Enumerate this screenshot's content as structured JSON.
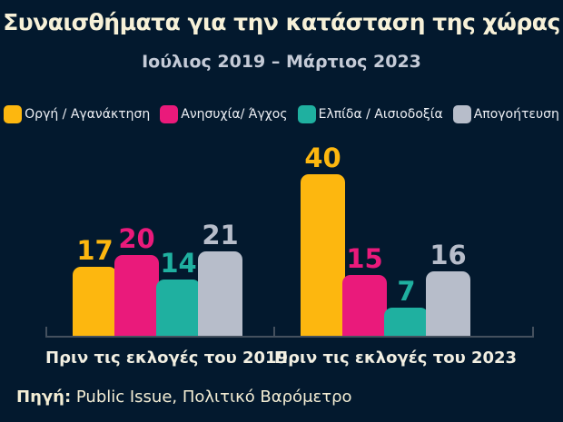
{
  "header": {
    "title": "Συναισθήματα για την κατάσταση της χώρας",
    "subtitle": "Ιούλιος 2019 – Μάρτιος 2023"
  },
  "chart_data": {
    "type": "bar",
    "title": "Συναισθήματα για την κατάσταση της χώρας",
    "subtitle": "Ιούλιος 2019 – Μάρτιος 2023",
    "categories": [
      "Πριν τις εκλογές του 2019",
      "Πριν τις εκλογές του 2023"
    ],
    "series": [
      {
        "name": "Οργή / Αγανάκτηση",
        "color": "#FDB70F",
        "values": [
          17,
          40
        ]
      },
      {
        "name": "Ανησυχία/ Άγχος",
        "color": "#EA1A7B",
        "values": [
          20,
          15
        ]
      },
      {
        "name": "Ελπίδα / Αισιοδοξία",
        "color": "#1FB0A0",
        "values": [
          14,
          7
        ]
      },
      {
        "name": "Απογοήτευση",
        "color": "#B7BDCA",
        "values": [
          21,
          16
        ]
      }
    ],
    "ylim": [
      0,
      42
    ],
    "grid": false,
    "legend_position": "top",
    "value_labels": true
  },
  "source": {
    "prefix": "Πηγή:",
    "text": " Public Issue, Πολιτικό Βαρόμετρο"
  },
  "colors": {
    "background": "#03192E",
    "title_text": "#F7F1D8",
    "subtitle_text": "#C5CBD7",
    "legend_text": "#EDEFF4",
    "category_label_text": "#F2EFE2",
    "axis_line": "#44505E",
    "source_text": "#F3EDD4"
  }
}
